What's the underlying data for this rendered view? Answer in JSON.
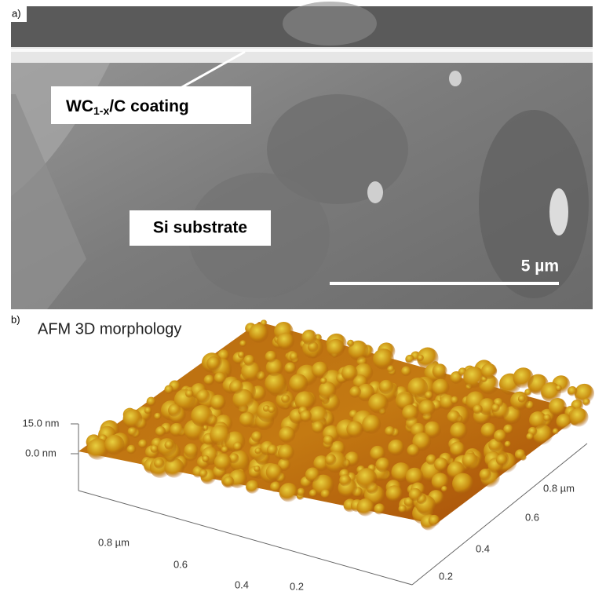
{
  "panel_a": {
    "label": "a)",
    "coating": {
      "prefix": "WC",
      "subscript": "1-x",
      "suffix": "/C coating"
    },
    "substrate": "Si substrate",
    "scale_bar": "5 µm"
  },
  "panel_b": {
    "label": "b)",
    "title": "AFM 3D morphology",
    "z_ticks": [
      "15.0 nm",
      "0.0 nm"
    ],
    "x_ticks": [
      "0.8 µm",
      "0.6",
      "0.4",
      "0.2"
    ],
    "y_ticks": [
      "0.8 µm",
      "0.6",
      "0.4",
      "0.2"
    ]
  }
}
